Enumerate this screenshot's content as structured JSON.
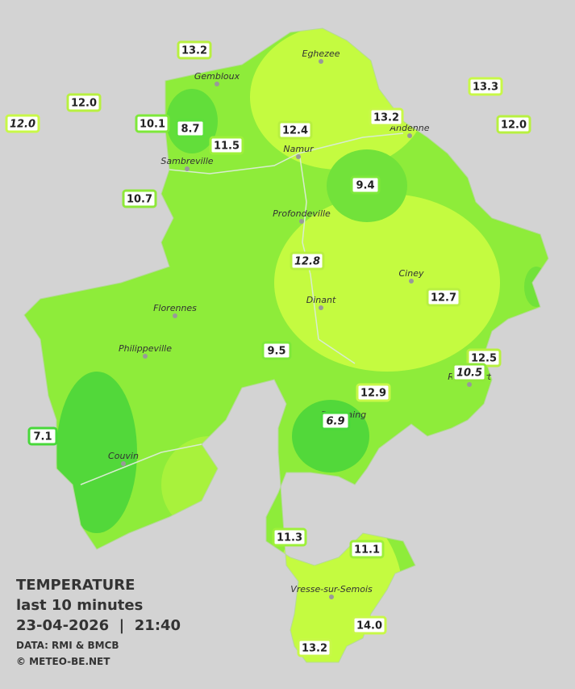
{
  "legend": {
    "title": "TEMPERATURE",
    "subtitle": "last 10 minutes",
    "datetime": "23-04-2026  |  21:40",
    "source": "DATA: RMI & BMCB",
    "credit": "© METEO-BE.NET"
  },
  "cities": [
    "Eghezee",
    "Gembloux",
    "Andenne",
    "Namur",
    "Sambreville",
    "Profondeville",
    "Ciney",
    "Dinant",
    "Florennes",
    "Philippeville",
    "Rochefort",
    "Beauraing",
    "Couvin",
    "Vresse-sur-Semois"
  ],
  "stations": [
    {
      "label": "13.2",
      "color": "#b8f040"
    },
    {
      "label": "12.0",
      "color": "#b8f040"
    },
    {
      "label": "12.0",
      "color": "#c8f848",
      "italic": true
    },
    {
      "label": "10.1",
      "color": "#7ee83a"
    },
    {
      "label": "8.7",
      "color": "#5ce03a"
    },
    {
      "label": "11.5",
      "color": "#9ef03a"
    },
    {
      "label": "12.4",
      "color": "#b8f040"
    },
    {
      "label": "13.2",
      "color": "#c8f848"
    },
    {
      "label": "13.3",
      "color": "#c8f848"
    },
    {
      "label": "12.0",
      "color": "#b8f040"
    },
    {
      "label": "10.7",
      "color": "#8ee83a"
    },
    {
      "label": "9.4",
      "color": "#7ee83a"
    },
    {
      "label": "12.8",
      "color": "#b8f040",
      "italic": true
    },
    {
      "label": "12.7",
      "color": "#b8f040"
    },
    {
      "label": "9.5",
      "color": "#7ee83a"
    },
    {
      "label": "12.5",
      "color": "#b8f040"
    },
    {
      "label": "10.5",
      "color": "#8ee83a",
      "italic": true
    },
    {
      "label": "12.9",
      "color": "#c8f848"
    },
    {
      "label": "6.9",
      "color": "#48d83a",
      "italic": true
    },
    {
      "label": "7.1",
      "color": "#48d83a"
    },
    {
      "label": "11.3",
      "color": "#9ef03a"
    },
    {
      "label": "11.1",
      "color": "#9ef03a"
    },
    {
      "label": "14.0",
      "color": "#c8f848"
    },
    {
      "label": "13.2",
      "color": "#c8f848"
    }
  ]
}
